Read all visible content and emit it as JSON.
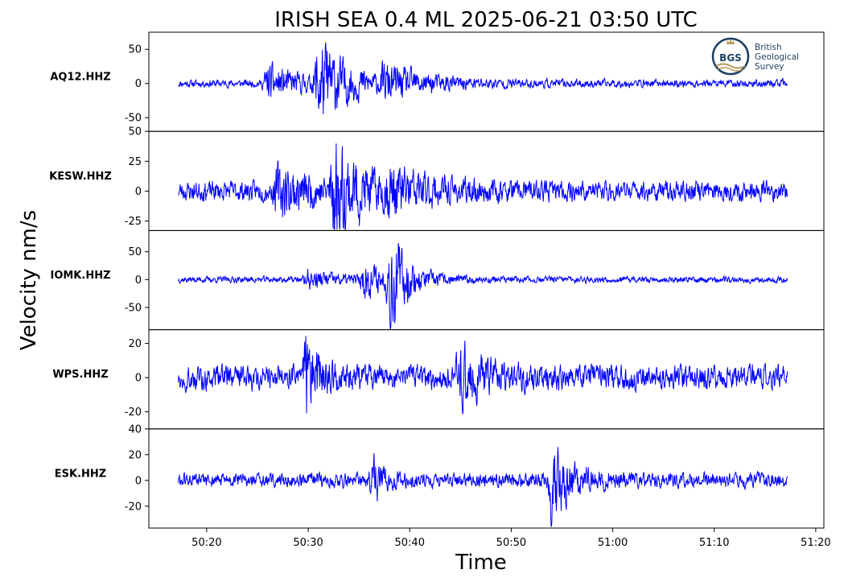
{
  "chart_data": {
    "type": "line",
    "title": "IRISH SEA 0.4 ML   2025-06-21 03:50 UTC",
    "xlabel": "Time",
    "ylabel": "Velocity nm/s",
    "line_color": "#0000ff",
    "x_range_seconds": [
      14.3,
      80.8
    ],
    "data_range_seconds": [
      17.2,
      77.2
    ],
    "x_ticks": [
      {
        "value": 20,
        "label": "50:20"
      },
      {
        "value": 30,
        "label": "50:30"
      },
      {
        "value": 40,
        "label": "50:40"
      },
      {
        "value": 50,
        "label": "50:50"
      },
      {
        "value": 60,
        "label": "51:00"
      },
      {
        "value": 70,
        "label": "51:10"
      },
      {
        "value": 80,
        "label": "51:20"
      }
    ],
    "panels": [
      {
        "station": "AQ12.HHZ",
        "ylim": [
          -70,
          75
        ],
        "yticks": [
          {
            "value": 50,
            "label": "50"
          },
          {
            "value": 0,
            "label": "0"
          },
          {
            "value": -50,
            "label": "-50"
          }
        ],
        "noise": 4,
        "bursts": [
          {
            "t": 26.0,
            "amp": 18,
            "width": 3.5
          },
          {
            "t": 31.0,
            "amp": 45,
            "width": 3.0
          },
          {
            "t": 37.5,
            "amp": 14,
            "width": 5.0
          }
        ],
        "seed": 11
      },
      {
        "station": "KESW.HHZ",
        "ylim": [
          -33,
          50
        ],
        "yticks": [
          {
            "value": 50,
            "label": "50"
          },
          {
            "value": 25,
            "label": "25"
          },
          {
            "value": 0,
            "label": "0"
          },
          {
            "value": -25,
            "label": "-25"
          }
        ],
        "noise": 6,
        "bursts": [
          {
            "t": 27.0,
            "amp": 12,
            "width": 4.0
          },
          {
            "t": 32.5,
            "amp": 28,
            "width": 2.8
          },
          {
            "t": 38.0,
            "amp": 10,
            "width": 4.0
          }
        ],
        "seed": 23
      },
      {
        "station": "IOMK.HHZ",
        "ylim": [
          -90,
          88
        ],
        "yticks": [
          {
            "value": 50,
            "label": "50"
          },
          {
            "value": 0,
            "label": "0"
          },
          {
            "value": -50,
            "label": "-50"
          }
        ],
        "noise": 4,
        "bursts": [
          {
            "t": 30.0,
            "amp": 10,
            "width": 4.0
          },
          {
            "t": 38.2,
            "amp": 60,
            "width": 1.4
          },
          {
            "t": 35.5,
            "amp": 18,
            "width": 3.5
          }
        ],
        "seed": 37
      },
      {
        "station": "WPS.HHZ",
        "ylim": [
          -30,
          28
        ],
        "yticks": [
          {
            "value": 20,
            "label": "20"
          },
          {
            "value": 0,
            "label": "0"
          },
          {
            "value": -20,
            "label": "-20"
          }
        ],
        "noise": 5,
        "bursts": [
          {
            "t": 29.8,
            "amp": 15,
            "width": 1.4
          },
          {
            "t": 45.0,
            "amp": 10,
            "width": 2.5
          }
        ],
        "seed": 49
      },
      {
        "station": "ESK.HHZ",
        "ylim": [
          -37,
          40
        ],
        "yticks": [
          {
            "value": 40,
            "label": "40"
          },
          {
            "value": 20,
            "label": "20"
          },
          {
            "value": 0,
            "label": "0"
          },
          {
            "value": -20,
            "label": "-20"
          }
        ],
        "noise": 4,
        "bursts": [
          {
            "t": 36.5,
            "amp": 14,
            "width": 0.8
          },
          {
            "t": 54.0,
            "amp": 22,
            "width": 1.8
          }
        ],
        "seed": 61
      }
    ]
  },
  "logo": {
    "abbr": "BGS",
    "line1": "British",
    "line2": "Geological",
    "line3": "Survey",
    "color": "#1c3f5e",
    "accent": "#b89a5a"
  }
}
